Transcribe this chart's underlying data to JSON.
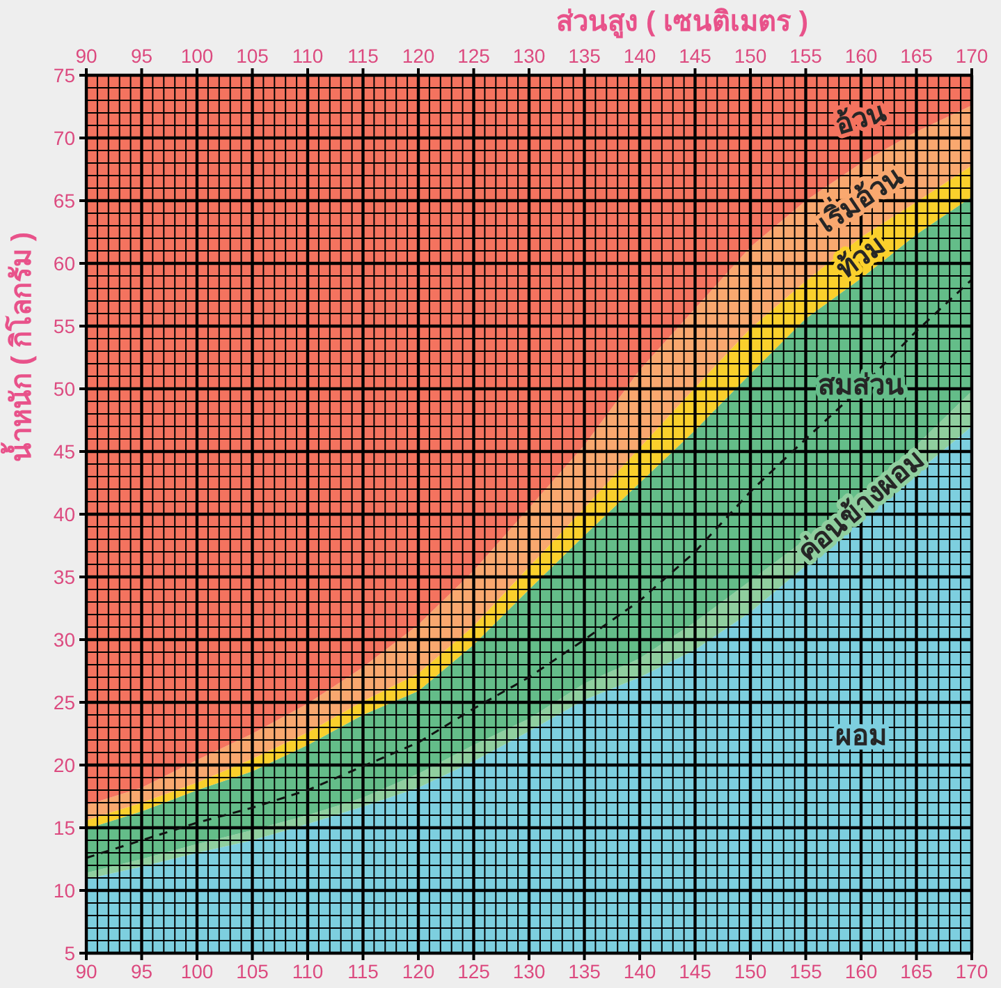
{
  "chart_data": {
    "type": "area",
    "x2label": "ส่วนสูง ( เซนติเมตร )",
    "ylabel": "น้ำหนัก ( กิโลกรัม )",
    "x": [
      90,
      95,
      100,
      105,
      110,
      115,
      120,
      125,
      130,
      135,
      140,
      145,
      150,
      155,
      160,
      165,
      170
    ],
    "xlim": [
      90,
      170
    ],
    "xticks": [
      90,
      95,
      100,
      105,
      110,
      115,
      120,
      125,
      130,
      135,
      140,
      145,
      150,
      155,
      160,
      165,
      170
    ],
    "x2lim": [
      90,
      170
    ],
    "x2ticks": [
      90,
      95,
      100,
      105,
      110,
      115,
      120,
      125,
      130,
      135,
      140,
      145,
      150,
      155,
      160,
      165,
      170
    ],
    "ylim": [
      5,
      75
    ],
    "yticks": [
      5,
      10,
      15,
      20,
      25,
      30,
      35,
      40,
      45,
      50,
      55,
      60,
      65,
      70,
      75
    ],
    "grid": true,
    "series": [
      {
        "name": "ผอม",
        "color": "#7dcfdf",
        "values": [
          10.9,
          11.9,
          13.0,
          14.0,
          15.3,
          16.7,
          18.2,
          20.3,
          22.7,
          25.2,
          27.0,
          29.2,
          32.2,
          35.9,
          39.6,
          43.3,
          47.0
        ]
      },
      {
        "name": "ค่อนข้างผอม",
        "color": "#90cf9f",
        "values": [
          11.4,
          12.5,
          13.7,
          14.8,
          16.0,
          17.4,
          19.3,
          21.6,
          23.7,
          26.5,
          28.5,
          31.4,
          34.7,
          38.0,
          41.7,
          45.5,
          49.8
        ]
      },
      {
        "name": "สมส่วน",
        "color": "#64bd89",
        "values": [
          14.9,
          16.3,
          18.0,
          19.5,
          21.6,
          24.0,
          25.9,
          29.6,
          34.0,
          38.3,
          42.5,
          46.7,
          51.2,
          55.6,
          58.8,
          62.3,
          65.3
        ]
      },
      {
        "name": "ท้วม",
        "color": "#fad02c",
        "values": [
          15.6,
          17.0,
          18.6,
          20.5,
          22.6,
          25.1,
          27.3,
          31.1,
          35.8,
          40.5,
          45.3,
          50.1,
          54.8,
          58.6,
          62.1,
          64.9,
          67.8
        ]
      },
      {
        "name": "เริ่มอ้วน",
        "color": "#f9a86f",
        "values": [
          16.8,
          18.2,
          20.4,
          22.5,
          24.9,
          27.8,
          31.2,
          35.5,
          40.5,
          45.5,
          51.5,
          56.4,
          61.3,
          65.0,
          68.0,
          70.5,
          72.6
        ]
      },
      {
        "name": "อ้วน",
        "color": "#f4735f",
        "values": [
          75,
          75,
          75,
          75,
          75,
          75,
          75,
          75,
          75,
          75,
          75,
          75,
          75,
          75,
          75,
          75,
          75
        ]
      },
      {
        "type": "line",
        "line_style": "dashed",
        "color": "#111111",
        "values": [
          12.6,
          14.0,
          15.4,
          16.6,
          18.0,
          19.9,
          21.8,
          24.5,
          27.0,
          30.0,
          33.1,
          37.0,
          41.8,
          46.0,
          50.1,
          54.6,
          58.7
        ]
      }
    ]
  }
}
